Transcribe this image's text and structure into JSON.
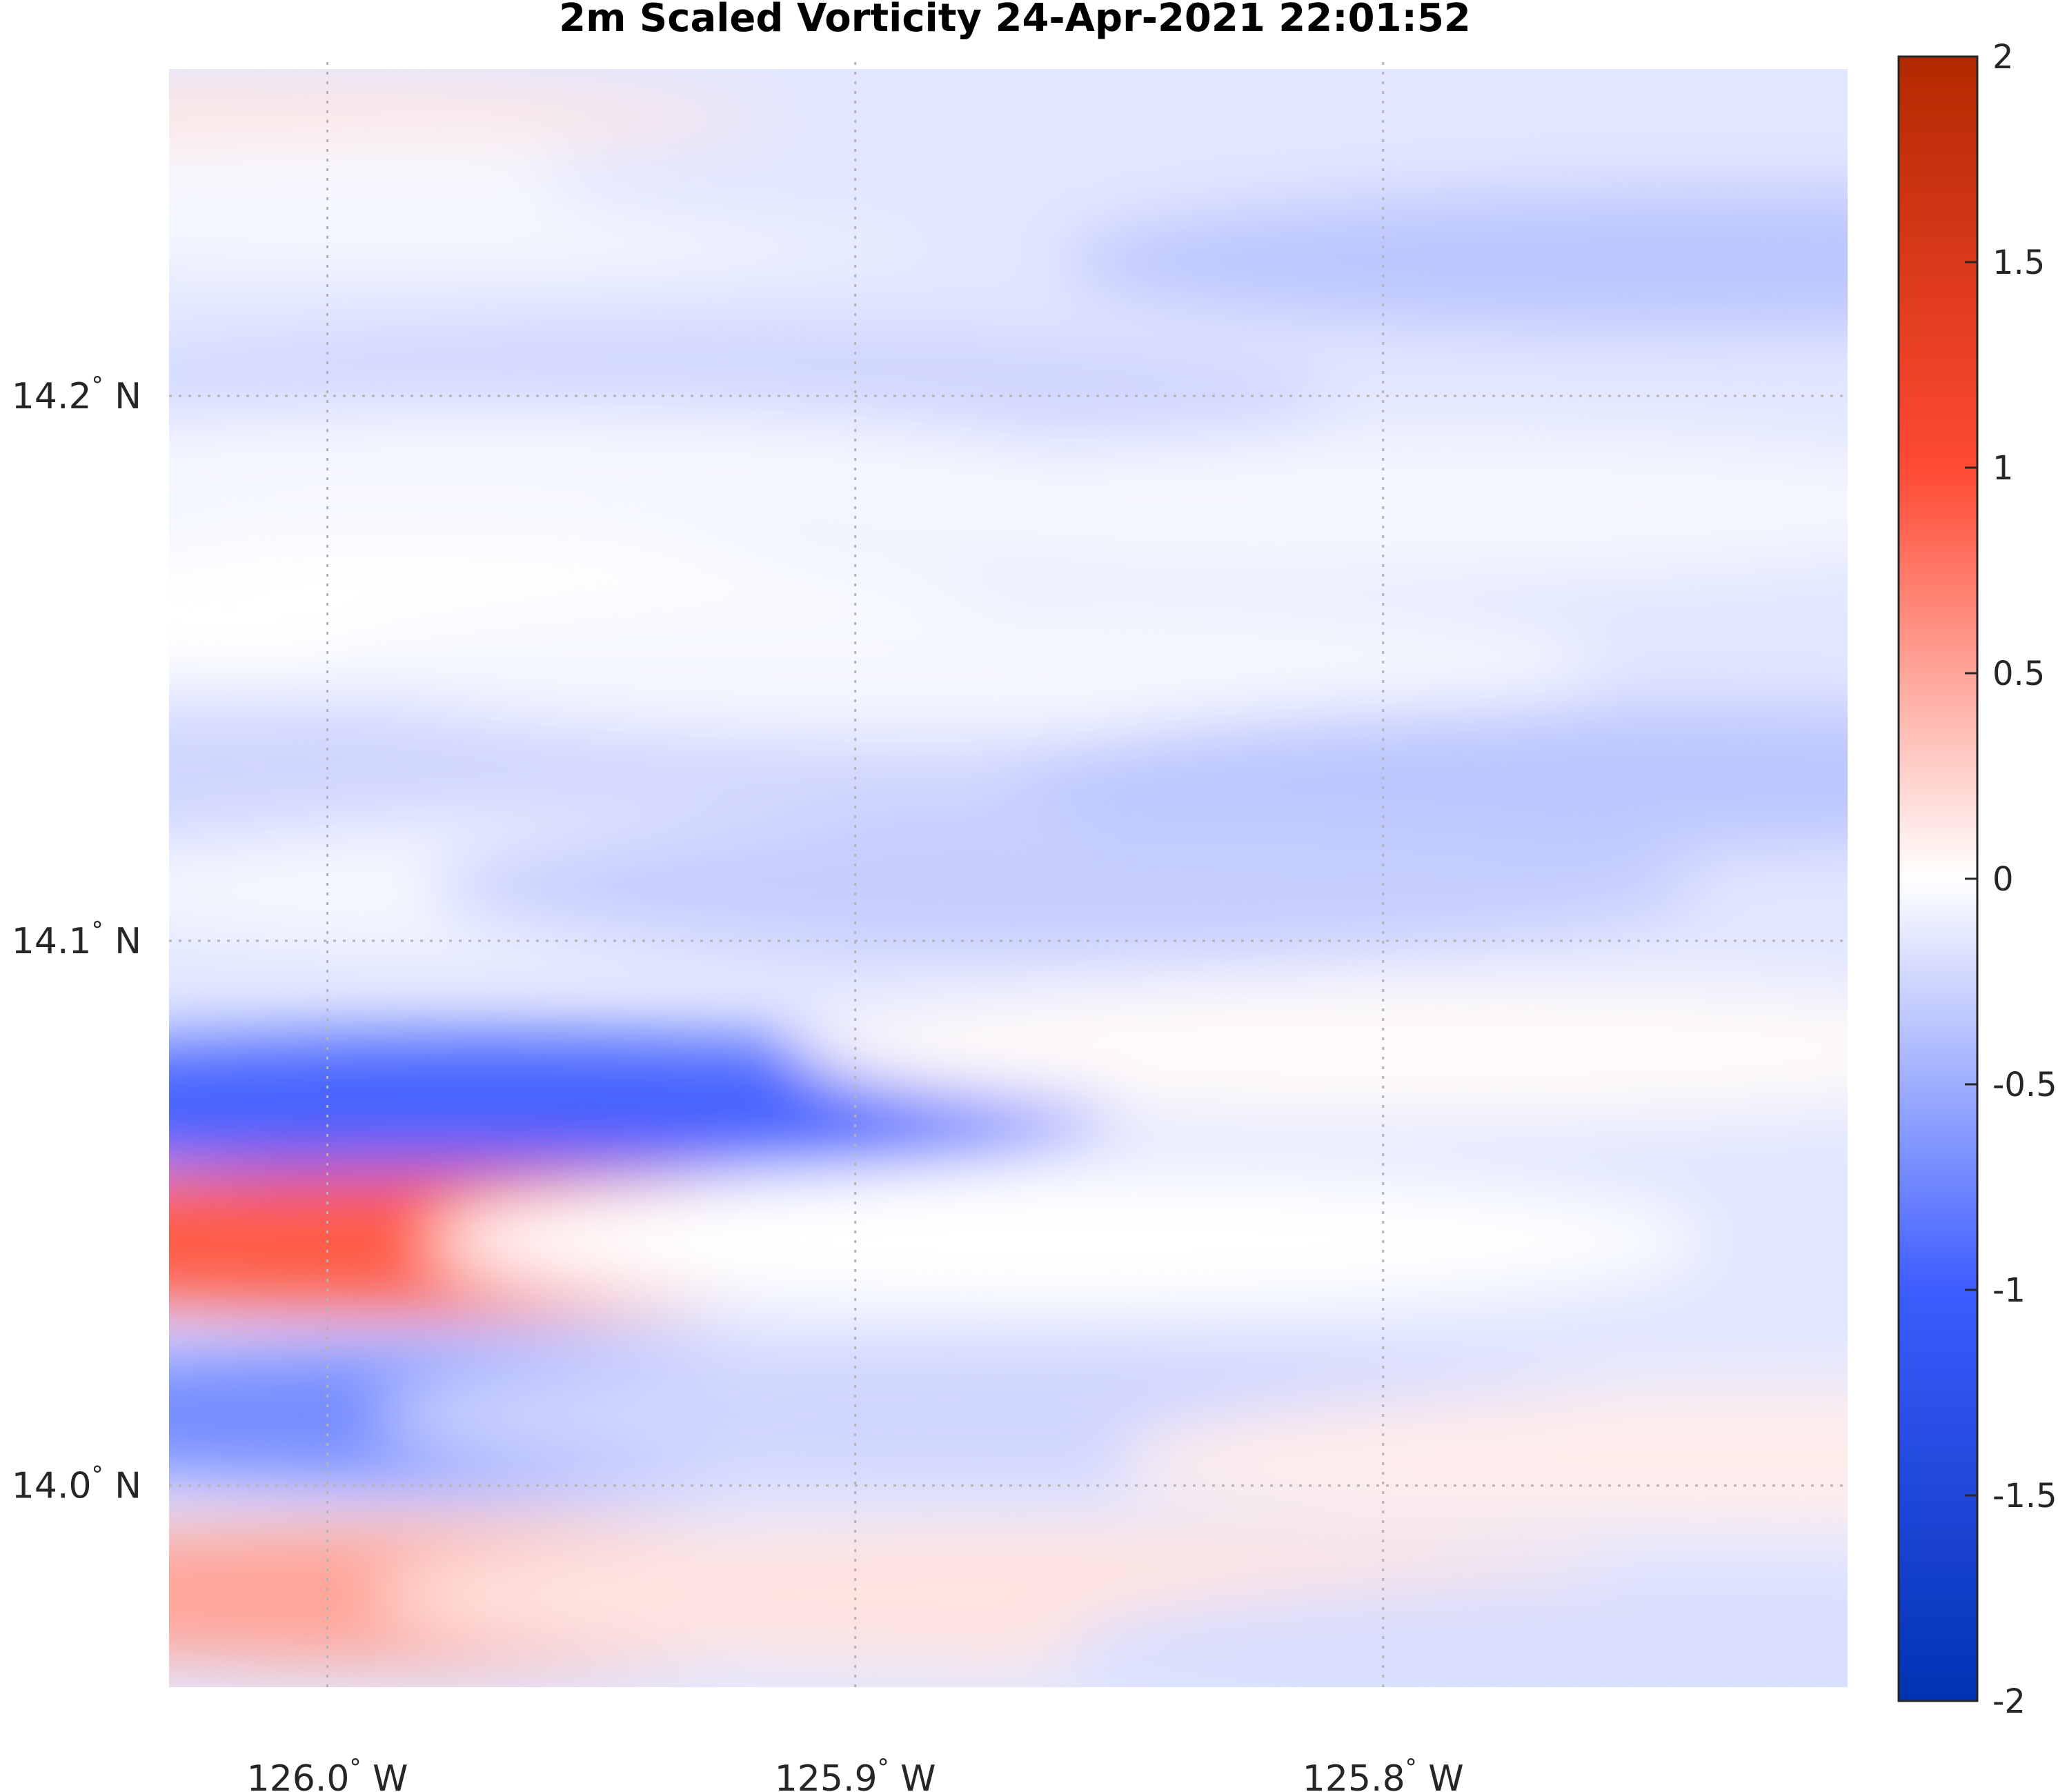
{
  "chart_data": {
    "type": "heatmap",
    "title": "2m Scaled Vorticity  24-Apr-2021 22:01:52",
    "xlabel": "",
    "ylabel": "",
    "x_ticks": [
      {
        "value": -126.0,
        "label": "126.0",
        "unit": "W"
      },
      {
        "value": -125.9,
        "label": "125.9",
        "unit": "W"
      },
      {
        "value": -125.8,
        "label": "125.8",
        "unit": "W"
      }
    ],
    "y_ticks": [
      {
        "value": 14.2,
        "label": "14.2",
        "unit": "N"
      },
      {
        "value": 14.1,
        "label": "14.1",
        "unit": "N"
      },
      {
        "value": 14.0,
        "label": "14.0",
        "unit": "N"
      }
    ],
    "degree_symbol": "°",
    "xlim": [
      -126.03,
      -125.712
    ],
    "ylim": [
      13.963,
      14.26
    ],
    "grid": true,
    "colormap": "blue-white-red diverging",
    "colormap_stops": [
      "#0033b3",
      "#3d5cff",
      "#ffffff",
      "#ff4a33",
      "#b32900"
    ],
    "clim": [
      -2,
      2
    ],
    "colorbar": {
      "location": "right",
      "ticks": [
        {
          "value": 2,
          "label": "2"
        },
        {
          "value": 1.5,
          "label": "1.5"
        },
        {
          "value": 1,
          "label": "1"
        },
        {
          "value": 0.5,
          "label": "0.5"
        },
        {
          "value": 0,
          "label": "0"
        },
        {
          "value": -0.5,
          "label": "-0.5"
        },
        {
          "value": -1,
          "label": "-1"
        },
        {
          "value": -1.5,
          "label": "-1.5"
        },
        {
          "value": -2,
          "label": "-2"
        }
      ]
    },
    "features": [
      {
        "lon": -126.02,
        "lat": 14.245,
        "value": 0.15
      },
      {
        "lon": -125.98,
        "lat": 14.235,
        "value": -0.05
      },
      {
        "lon": -125.93,
        "lat": 14.2,
        "value": -0.25
      },
      {
        "lon": -125.84,
        "lat": 14.24,
        "value": -0.15
      },
      {
        "lon": -125.74,
        "lat": 14.225,
        "value": -0.35
      },
      {
        "lon": -125.97,
        "lat": 14.185,
        "value": -0.05
      },
      {
        "lon": -125.8,
        "lat": 14.18,
        "value": -0.05
      },
      {
        "lon": -125.99,
        "lat": 14.16,
        "value": 0.0
      },
      {
        "lon": -125.97,
        "lat": 14.13,
        "value": -0.25
      },
      {
        "lon": -125.88,
        "lat": 14.15,
        "value": -0.05
      },
      {
        "lon": -125.75,
        "lat": 14.13,
        "value": -0.35
      },
      {
        "lon": -125.93,
        "lat": 14.11,
        "value": -0.05
      },
      {
        "lon": -125.86,
        "lat": 14.11,
        "value": -0.3
      },
      {
        "lon": -125.97,
        "lat": 14.07,
        "value": -0.95
      },
      {
        "lon": -125.79,
        "lat": 14.08,
        "value": 0.03
      },
      {
        "lon": -125.98,
        "lat": 14.045,
        "value": 0.9
      },
      {
        "lon": -125.86,
        "lat": 14.045,
        "value": 0.0
      },
      {
        "lon": -125.97,
        "lat": 14.013,
        "value": -0.7
      },
      {
        "lon": -125.87,
        "lat": 14.013,
        "value": -0.25
      },
      {
        "lon": -125.73,
        "lat": 14.005,
        "value": 0.1
      },
      {
        "lon": -125.98,
        "lat": 13.98,
        "value": 0.5
      },
      {
        "lon": -125.87,
        "lat": 13.98,
        "value": 0.15
      },
      {
        "lon": -125.74,
        "lat": 13.97,
        "value": -0.2
      }
    ]
  }
}
